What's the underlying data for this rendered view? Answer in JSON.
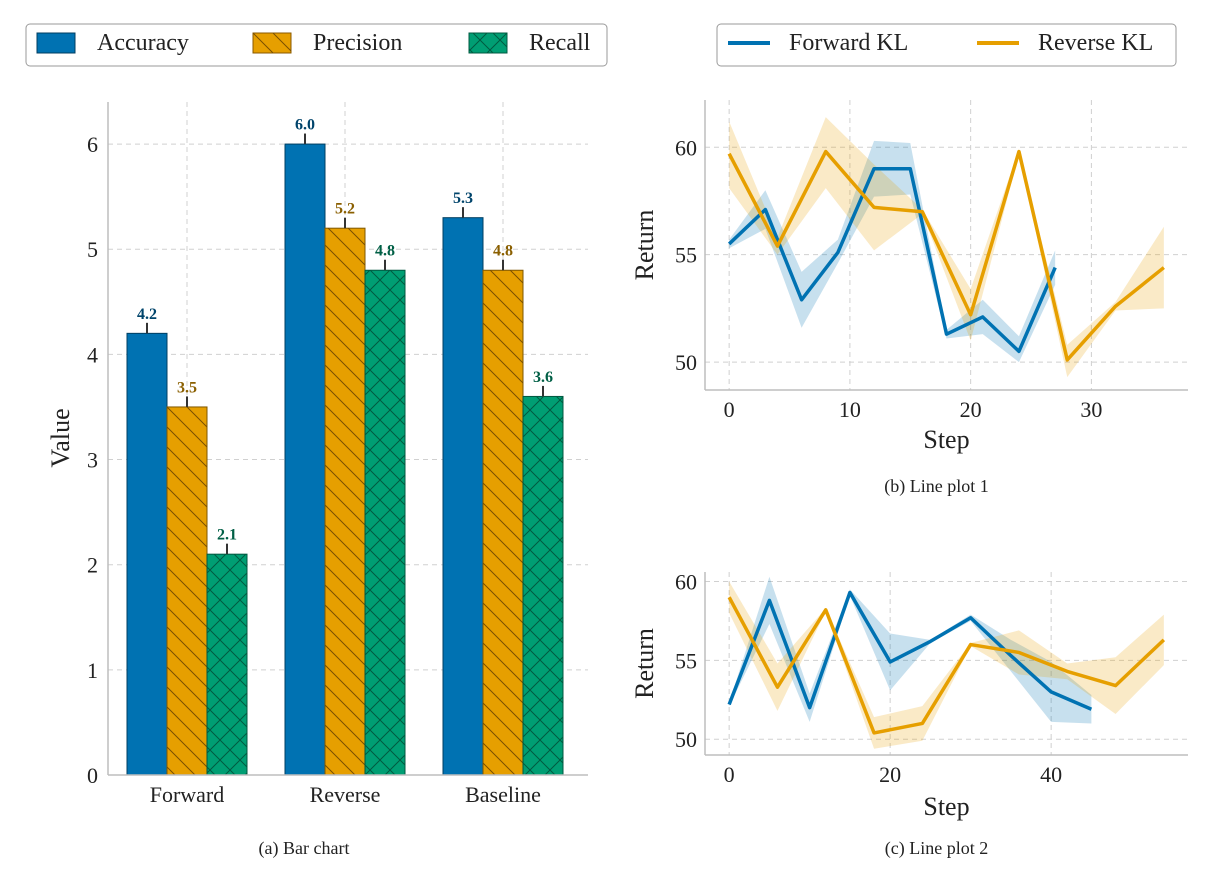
{
  "colors": {
    "accuracy": "#0072b2",
    "precision": "#e69f00",
    "recall": "#009e73",
    "forward": "#0072b2",
    "reverse": "#e69f00",
    "grid": "#d0d0d0",
    "axis": "#bdbdbd"
  },
  "legend_bar": {
    "items": [
      "Accuracy",
      "Precision",
      "Recall"
    ]
  },
  "legend_line": {
    "items": [
      "Forward KL",
      "Reverse KL"
    ]
  },
  "chart_data": [
    {
      "type": "bar",
      "caption": "(a) Bar chart",
      "ylabel": "Value",
      "ylim": [
        0,
        6.4
      ],
      "yticks": [
        0,
        1,
        2,
        3,
        4,
        5,
        6
      ],
      "categories": [
        "Forward",
        "Reverse",
        "Baseline"
      ],
      "series": [
        {
          "name": "Accuracy",
          "values": [
            4.2,
            6.0,
            5.3
          ],
          "error": [
            0.1,
            0.1,
            0.1
          ],
          "labels": [
            "4.2",
            "6.0",
            "5.3"
          ]
        },
        {
          "name": "Precision",
          "values": [
            3.5,
            5.2,
            4.8
          ],
          "error": [
            0.1,
            0.1,
            0.1
          ],
          "labels": [
            "3.5",
            "5.2",
            "4.8"
          ]
        },
        {
          "name": "Recall",
          "values": [
            2.1,
            4.8,
            3.6
          ],
          "error": [
            0.1,
            0.1,
            0.1
          ],
          "labels": [
            "2.1",
            "4.8",
            "3.6"
          ]
        }
      ],
      "grid": true
    },
    {
      "type": "line",
      "caption": "(b) Line plot 1",
      "xlabel": "Step",
      "ylabel": "Return",
      "xlim": [
        -2,
        38
      ],
      "ylim": [
        48.7,
        62.2
      ],
      "xticks": [
        0,
        10,
        20,
        30
      ],
      "yticks": [
        50,
        55,
        60
      ],
      "grid": true,
      "series": [
        {
          "name": "Forward KL",
          "x": [
            0,
            3,
            6,
            9,
            12,
            15,
            18,
            21,
            24,
            27
          ],
          "y": [
            55.5,
            57.1,
            52.9,
            55.1,
            59.0,
            59.0,
            51.3,
            52.1,
            50.5,
            54.4
          ],
          "lower": [
            55.3,
            56.2,
            51.6,
            54.6,
            57.7,
            57.8,
            51.1,
            51.3,
            50.0,
            53.6
          ],
          "upper": [
            55.7,
            58.0,
            54.2,
            55.7,
            60.3,
            60.2,
            51.5,
            52.9,
            51.2,
            55.2
          ]
        },
        {
          "name": "Reverse KL",
          "x": [
            0,
            4,
            8,
            12,
            16,
            20,
            24,
            28,
            32,
            36
          ],
          "y": [
            59.7,
            55.4,
            59.8,
            57.2,
            57.0,
            52.2,
            59.8,
            50.1,
            52.6,
            54.4
          ],
          "lower": [
            58.1,
            55.0,
            58.1,
            55.2,
            56.9,
            51.0,
            59.7,
            49.3,
            52.4,
            52.5
          ],
          "upper": [
            61.2,
            55.8,
            61.4,
            59.2,
            57.1,
            53.4,
            59.9,
            50.8,
            52.8,
            56.3
          ]
        }
      ]
    },
    {
      "type": "line",
      "caption": "(c) Line plot 2",
      "xlabel": "Step",
      "ylabel": "Return",
      "xlim": [
        -3,
        57
      ],
      "ylim": [
        49.0,
        60.6
      ],
      "xticks": [
        0,
        20,
        40
      ],
      "yticks": [
        50,
        55,
        60
      ],
      "grid": true,
      "series": [
        {
          "name": "Forward KL",
          "x": [
            0,
            5,
            10,
            15,
            20,
            25,
            30,
            35,
            40,
            45
          ],
          "y": [
            52.2,
            58.8,
            52.0,
            59.3,
            54.9,
            56.2,
            57.7,
            55.3,
            53.0,
            51.9
          ],
          "lower": [
            52.1,
            57.3,
            51.1,
            59.1,
            53.1,
            56.1,
            57.5,
            54.3,
            51.1,
            51.0
          ],
          "upper": [
            52.3,
            60.3,
            52.9,
            59.5,
            56.7,
            56.3,
            57.9,
            56.3,
            54.9,
            52.8
          ]
        },
        {
          "name": "Reverse KL",
          "x": [
            0,
            6,
            12,
            18,
            24,
            30,
            36,
            42,
            48,
            54
          ],
          "y": [
            59.0,
            53.3,
            58.2,
            50.4,
            51.0,
            56.0,
            55.5,
            54.3,
            53.4,
            56.3
          ],
          "lower": [
            58.0,
            51.8,
            58.1,
            49.4,
            49.9,
            55.9,
            54.1,
            53.8,
            51.6,
            54.7
          ],
          "upper": [
            60.0,
            54.8,
            58.3,
            51.4,
            52.1,
            56.1,
            56.9,
            54.8,
            55.2,
            57.9
          ]
        }
      ]
    }
  ]
}
